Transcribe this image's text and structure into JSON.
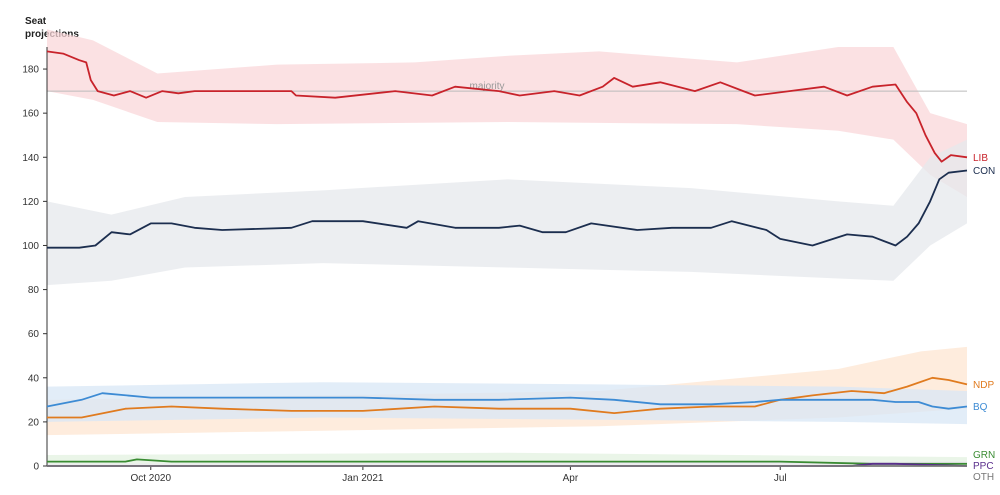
{
  "chart_data": {
    "type": "line",
    "ylabel_lines": [
      "Seat",
      "projections"
    ],
    "ylim": [
      0,
      190
    ],
    "yticks": [
      0,
      20,
      40,
      60,
      80,
      100,
      120,
      140,
      160,
      180
    ],
    "xlim": [
      "2020-08-17",
      "2021-09-20"
    ],
    "xticks": [
      {
        "date": "2020-10-01",
        "label": "Oct 2020"
      },
      {
        "date": "2021-01-01",
        "label": "Jan 2021"
      },
      {
        "date": "2021-04-01",
        "label": "Apr"
      },
      {
        "date": "2021-07-01",
        "label": "Jul"
      }
    ],
    "majority": {
      "value": 170,
      "label": "majority"
    },
    "grid": false,
    "series": [
      {
        "name": "LIB",
        "color": "#c8232b",
        "band_color": "#f9d7d9",
        "points": [
          [
            "2020-08-17",
            188
          ],
          [
            "2020-08-24",
            187
          ],
          [
            "2020-08-31",
            184
          ],
          [
            "2020-09-03",
            183
          ],
          [
            "2020-09-05",
            175
          ],
          [
            "2020-09-08",
            170
          ],
          [
            "2020-09-15",
            168
          ],
          [
            "2020-09-22",
            170
          ],
          [
            "2020-09-29",
            167
          ],
          [
            "2020-10-06",
            170
          ],
          [
            "2020-10-13",
            169
          ],
          [
            "2020-10-20",
            170
          ],
          [
            "2020-11-15",
            170
          ],
          [
            "2020-12-01",
            170
          ],
          [
            "2020-12-03",
            168
          ],
          [
            "2020-12-20",
            167
          ],
          [
            "2021-01-15",
            170
          ],
          [
            "2021-01-31",
            168
          ],
          [
            "2021-02-10",
            172
          ],
          [
            "2021-03-01",
            170
          ],
          [
            "2021-03-10",
            168
          ],
          [
            "2021-03-25",
            170
          ],
          [
            "2021-04-05",
            168
          ],
          [
            "2021-04-15",
            172
          ],
          [
            "2021-04-20",
            176
          ],
          [
            "2021-04-28",
            172
          ],
          [
            "2021-05-10",
            174
          ],
          [
            "2021-05-25",
            170
          ],
          [
            "2021-06-05",
            174
          ],
          [
            "2021-06-15",
            170
          ],
          [
            "2021-06-20",
            168
          ],
          [
            "2021-07-05",
            170
          ],
          [
            "2021-07-20",
            172
          ],
          [
            "2021-07-30",
            168
          ],
          [
            "2021-08-10",
            172
          ],
          [
            "2021-08-20",
            173
          ],
          [
            "2021-08-25",
            165
          ],
          [
            "2021-08-29",
            160
          ],
          [
            "2021-09-02",
            150
          ],
          [
            "2021-09-06",
            142
          ],
          [
            "2021-09-09",
            138
          ],
          [
            "2021-09-13",
            141
          ],
          [
            "2021-09-20",
            140
          ]
        ],
        "lower": [
          [
            0,
            170
          ],
          [
            0.05,
            166
          ],
          [
            0.12,
            156
          ],
          [
            0.25,
            155
          ],
          [
            0.5,
            156
          ],
          [
            0.75,
            155
          ],
          [
            0.86,
            152
          ],
          [
            0.92,
            148
          ],
          [
            0.96,
            132
          ],
          [
            1,
            122
          ]
        ],
        "upper": [
          [
            0,
            198
          ],
          [
            0.05,
            193
          ],
          [
            0.12,
            178
          ],
          [
            0.25,
            182
          ],
          [
            0.4,
            183
          ],
          [
            0.5,
            186
          ],
          [
            0.6,
            188
          ],
          [
            0.75,
            183
          ],
          [
            0.86,
            190
          ],
          [
            0.92,
            190
          ],
          [
            0.96,
            160
          ],
          [
            1,
            155
          ]
        ]
      },
      {
        "name": "CON",
        "color": "#1c2e4f",
        "band_color": "#e6e8ec",
        "points": [
          [
            "2020-08-17",
            99
          ],
          [
            "2020-08-31",
            99
          ],
          [
            "2020-09-07",
            100
          ],
          [
            "2020-09-14",
            106
          ],
          [
            "2020-09-22",
            105
          ],
          [
            "2020-10-01",
            110
          ],
          [
            "2020-10-10",
            110
          ],
          [
            "2020-10-20",
            108
          ],
          [
            "2020-11-01",
            107
          ],
          [
            "2020-12-01",
            108
          ],
          [
            "2020-12-10",
            111
          ],
          [
            "2021-01-01",
            111
          ],
          [
            "2021-01-20",
            108
          ],
          [
            "2021-01-25",
            111
          ],
          [
            "2021-02-10",
            108
          ],
          [
            "2021-03-01",
            108
          ],
          [
            "2021-03-10",
            109
          ],
          [
            "2021-03-20",
            106
          ],
          [
            "2021-03-30",
            106
          ],
          [
            "2021-04-10",
            110
          ],
          [
            "2021-04-30",
            107
          ],
          [
            "2021-05-15",
            108
          ],
          [
            "2021-06-01",
            108
          ],
          [
            "2021-06-10",
            111
          ],
          [
            "2021-06-25",
            107
          ],
          [
            "2021-07-01",
            103
          ],
          [
            "2021-07-15",
            100
          ],
          [
            "2021-07-30",
            105
          ],
          [
            "2021-08-10",
            104
          ],
          [
            "2021-08-15",
            102
          ],
          [
            "2021-08-20",
            100
          ],
          [
            "2021-08-25",
            104
          ],
          [
            "2021-08-30",
            110
          ],
          [
            "2021-09-04",
            120
          ],
          [
            "2021-09-08",
            130
          ],
          [
            "2021-09-12",
            133
          ],
          [
            "2021-09-20",
            134
          ]
        ],
        "lower": [
          [
            0,
            82
          ],
          [
            0.07,
            84
          ],
          [
            0.15,
            90
          ],
          [
            0.3,
            92
          ],
          [
            0.5,
            90
          ],
          [
            0.7,
            88
          ],
          [
            0.86,
            85
          ],
          [
            0.92,
            84
          ],
          [
            0.96,
            100
          ],
          [
            1,
            110
          ]
        ],
        "upper": [
          [
            0,
            120
          ],
          [
            0.07,
            114
          ],
          [
            0.15,
            122
          ],
          [
            0.3,
            125
          ],
          [
            0.5,
            130
          ],
          [
            0.7,
            126
          ],
          [
            0.86,
            120
          ],
          [
            0.92,
            118
          ],
          [
            0.96,
            140
          ],
          [
            1,
            148
          ]
        ]
      },
      {
        "name": "NDP",
        "color": "#e07b1f",
        "band_color": "#fde6d2",
        "points": [
          [
            "2020-08-17",
            22
          ],
          [
            "2020-09-01",
            22
          ],
          [
            "2020-09-20",
            26
          ],
          [
            "2020-10-10",
            27
          ],
          [
            "2020-11-01",
            26
          ],
          [
            "2020-12-01",
            25
          ],
          [
            "2021-01-01",
            25
          ],
          [
            "2021-02-01",
            27
          ],
          [
            "2021-03-01",
            26
          ],
          [
            "2021-04-01",
            26
          ],
          [
            "2021-04-20",
            24
          ],
          [
            "2021-05-10",
            26
          ],
          [
            "2021-06-01",
            27
          ],
          [
            "2021-06-20",
            27
          ],
          [
            "2021-07-01",
            30
          ],
          [
            "2021-07-15",
            32
          ],
          [
            "2021-08-01",
            34
          ],
          [
            "2021-08-15",
            33
          ],
          [
            "2021-08-25",
            36
          ],
          [
            "2021-09-05",
            40
          ],
          [
            "2021-09-12",
            39
          ],
          [
            "2021-09-20",
            37
          ]
        ],
        "lower": [
          [
            0,
            14
          ],
          [
            0.3,
            16
          ],
          [
            0.6,
            18
          ],
          [
            0.86,
            22
          ],
          [
            1,
            26
          ]
        ],
        "upper": [
          [
            0,
            30
          ],
          [
            0.3,
            32
          ],
          [
            0.6,
            34
          ],
          [
            0.86,
            44
          ],
          [
            0.95,
            52
          ],
          [
            1,
            54
          ]
        ]
      },
      {
        "name": "BQ",
        "color": "#3d8bd4",
        "band_color": "#d8e7f6",
        "points": [
          [
            "2020-08-17",
            27
          ],
          [
            "2020-09-01",
            30
          ],
          [
            "2020-09-10",
            33
          ],
          [
            "2020-10-01",
            31
          ],
          [
            "2020-11-01",
            31
          ],
          [
            "2020-12-01",
            31
          ],
          [
            "2021-01-01",
            31
          ],
          [
            "2021-02-01",
            30
          ],
          [
            "2021-03-01",
            30
          ],
          [
            "2021-04-01",
            31
          ],
          [
            "2021-04-20",
            30
          ],
          [
            "2021-05-10",
            28
          ],
          [
            "2021-06-01",
            28
          ],
          [
            "2021-06-20",
            29
          ],
          [
            "2021-07-01",
            30
          ],
          [
            "2021-07-20",
            30
          ],
          [
            "2021-08-10",
            30
          ],
          [
            "2021-08-20",
            29
          ],
          [
            "2021-08-30",
            29
          ],
          [
            "2021-09-05",
            27
          ],
          [
            "2021-09-12",
            26
          ],
          [
            "2021-09-20",
            27
          ]
        ],
        "lower": [
          [
            0,
            20
          ],
          [
            0.3,
            22
          ],
          [
            0.6,
            21
          ],
          [
            0.86,
            20
          ],
          [
            1,
            19
          ]
        ],
        "upper": [
          [
            0,
            36
          ],
          [
            0.3,
            38
          ],
          [
            0.6,
            37
          ],
          [
            0.86,
            36
          ],
          [
            1,
            34
          ]
        ]
      },
      {
        "name": "GRN",
        "color": "#3a8c33",
        "band_color": "#e3f1e0",
        "points": [
          [
            "2020-08-17",
            2
          ],
          [
            "2020-09-20",
            2
          ],
          [
            "2020-09-25",
            3
          ],
          [
            "2020-10-10",
            2
          ],
          [
            "2021-01-01",
            2
          ],
          [
            "2021-03-01",
            2
          ],
          [
            "2021-05-01",
            2
          ],
          [
            "2021-07-01",
            2
          ],
          [
            "2021-08-10",
            1
          ],
          [
            "2021-09-20",
            1
          ]
        ],
        "lower": [
          [
            0,
            0
          ],
          [
            1,
            0
          ]
        ],
        "upper": [
          [
            0,
            5
          ],
          [
            0.5,
            6
          ],
          [
            1,
            4
          ]
        ]
      },
      {
        "name": "PPC",
        "color": "#5a2e8c",
        "band_color": "#ece4f3",
        "points": [
          [
            "2020-08-17",
            0
          ],
          [
            "2021-08-01",
            0
          ],
          [
            "2021-08-10",
            1
          ],
          [
            "2021-08-20",
            1
          ],
          [
            "2021-09-20",
            0
          ]
        ],
        "lower": [
          [
            0,
            0
          ],
          [
            1,
            0
          ]
        ],
        "upper": [
          [
            0,
            1
          ],
          [
            1,
            2
          ]
        ]
      },
      {
        "name": "OTH",
        "color": "#777777",
        "band_color": "#eeeeee",
        "points": [
          [
            "2020-08-17",
            0
          ],
          [
            "2021-09-20",
            0
          ]
        ],
        "lower": [
          [
            0,
            0
          ],
          [
            1,
            0
          ]
        ],
        "upper": [
          [
            0,
            1
          ],
          [
            1,
            1
          ]
        ]
      }
    ]
  }
}
